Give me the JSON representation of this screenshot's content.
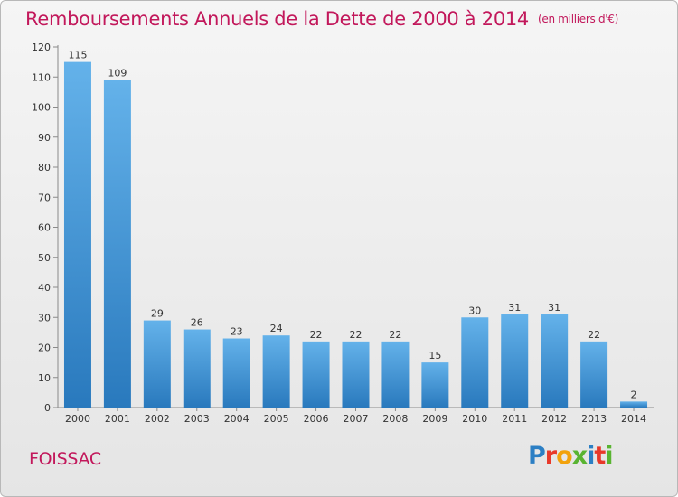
{
  "header": {
    "title": "Remboursements Annuels de la Dette de 2000 à 2014",
    "unit": "(en milliers d'€)"
  },
  "footer": {
    "commune": "FOISSAC",
    "logo": "Proxiti"
  },
  "colors": {
    "title": "#c2185b",
    "bar_top": "#64b2ea",
    "bar_bottom": "#2979bd"
  },
  "chart_data": {
    "type": "bar",
    "categories": [
      "2000",
      "2001",
      "2002",
      "2003",
      "2004",
      "2005",
      "2006",
      "2007",
      "2008",
      "2009",
      "2010",
      "2011",
      "2012",
      "2013",
      "2014"
    ],
    "values": [
      115,
      109,
      29,
      26,
      23,
      24,
      22,
      22,
      22,
      15,
      30,
      31,
      31,
      22,
      2
    ],
    "title": "Remboursements Annuels de la Dette de 2000 à 2014",
    "subtitle": "(en milliers d'€)",
    "xlabel": "",
    "ylabel": "",
    "ylim": [
      0,
      120
    ],
    "yticks": [
      0,
      10,
      20,
      30,
      40,
      50,
      60,
      70,
      80,
      90,
      100,
      110,
      120
    ],
    "grid": false,
    "data_labels": true
  }
}
